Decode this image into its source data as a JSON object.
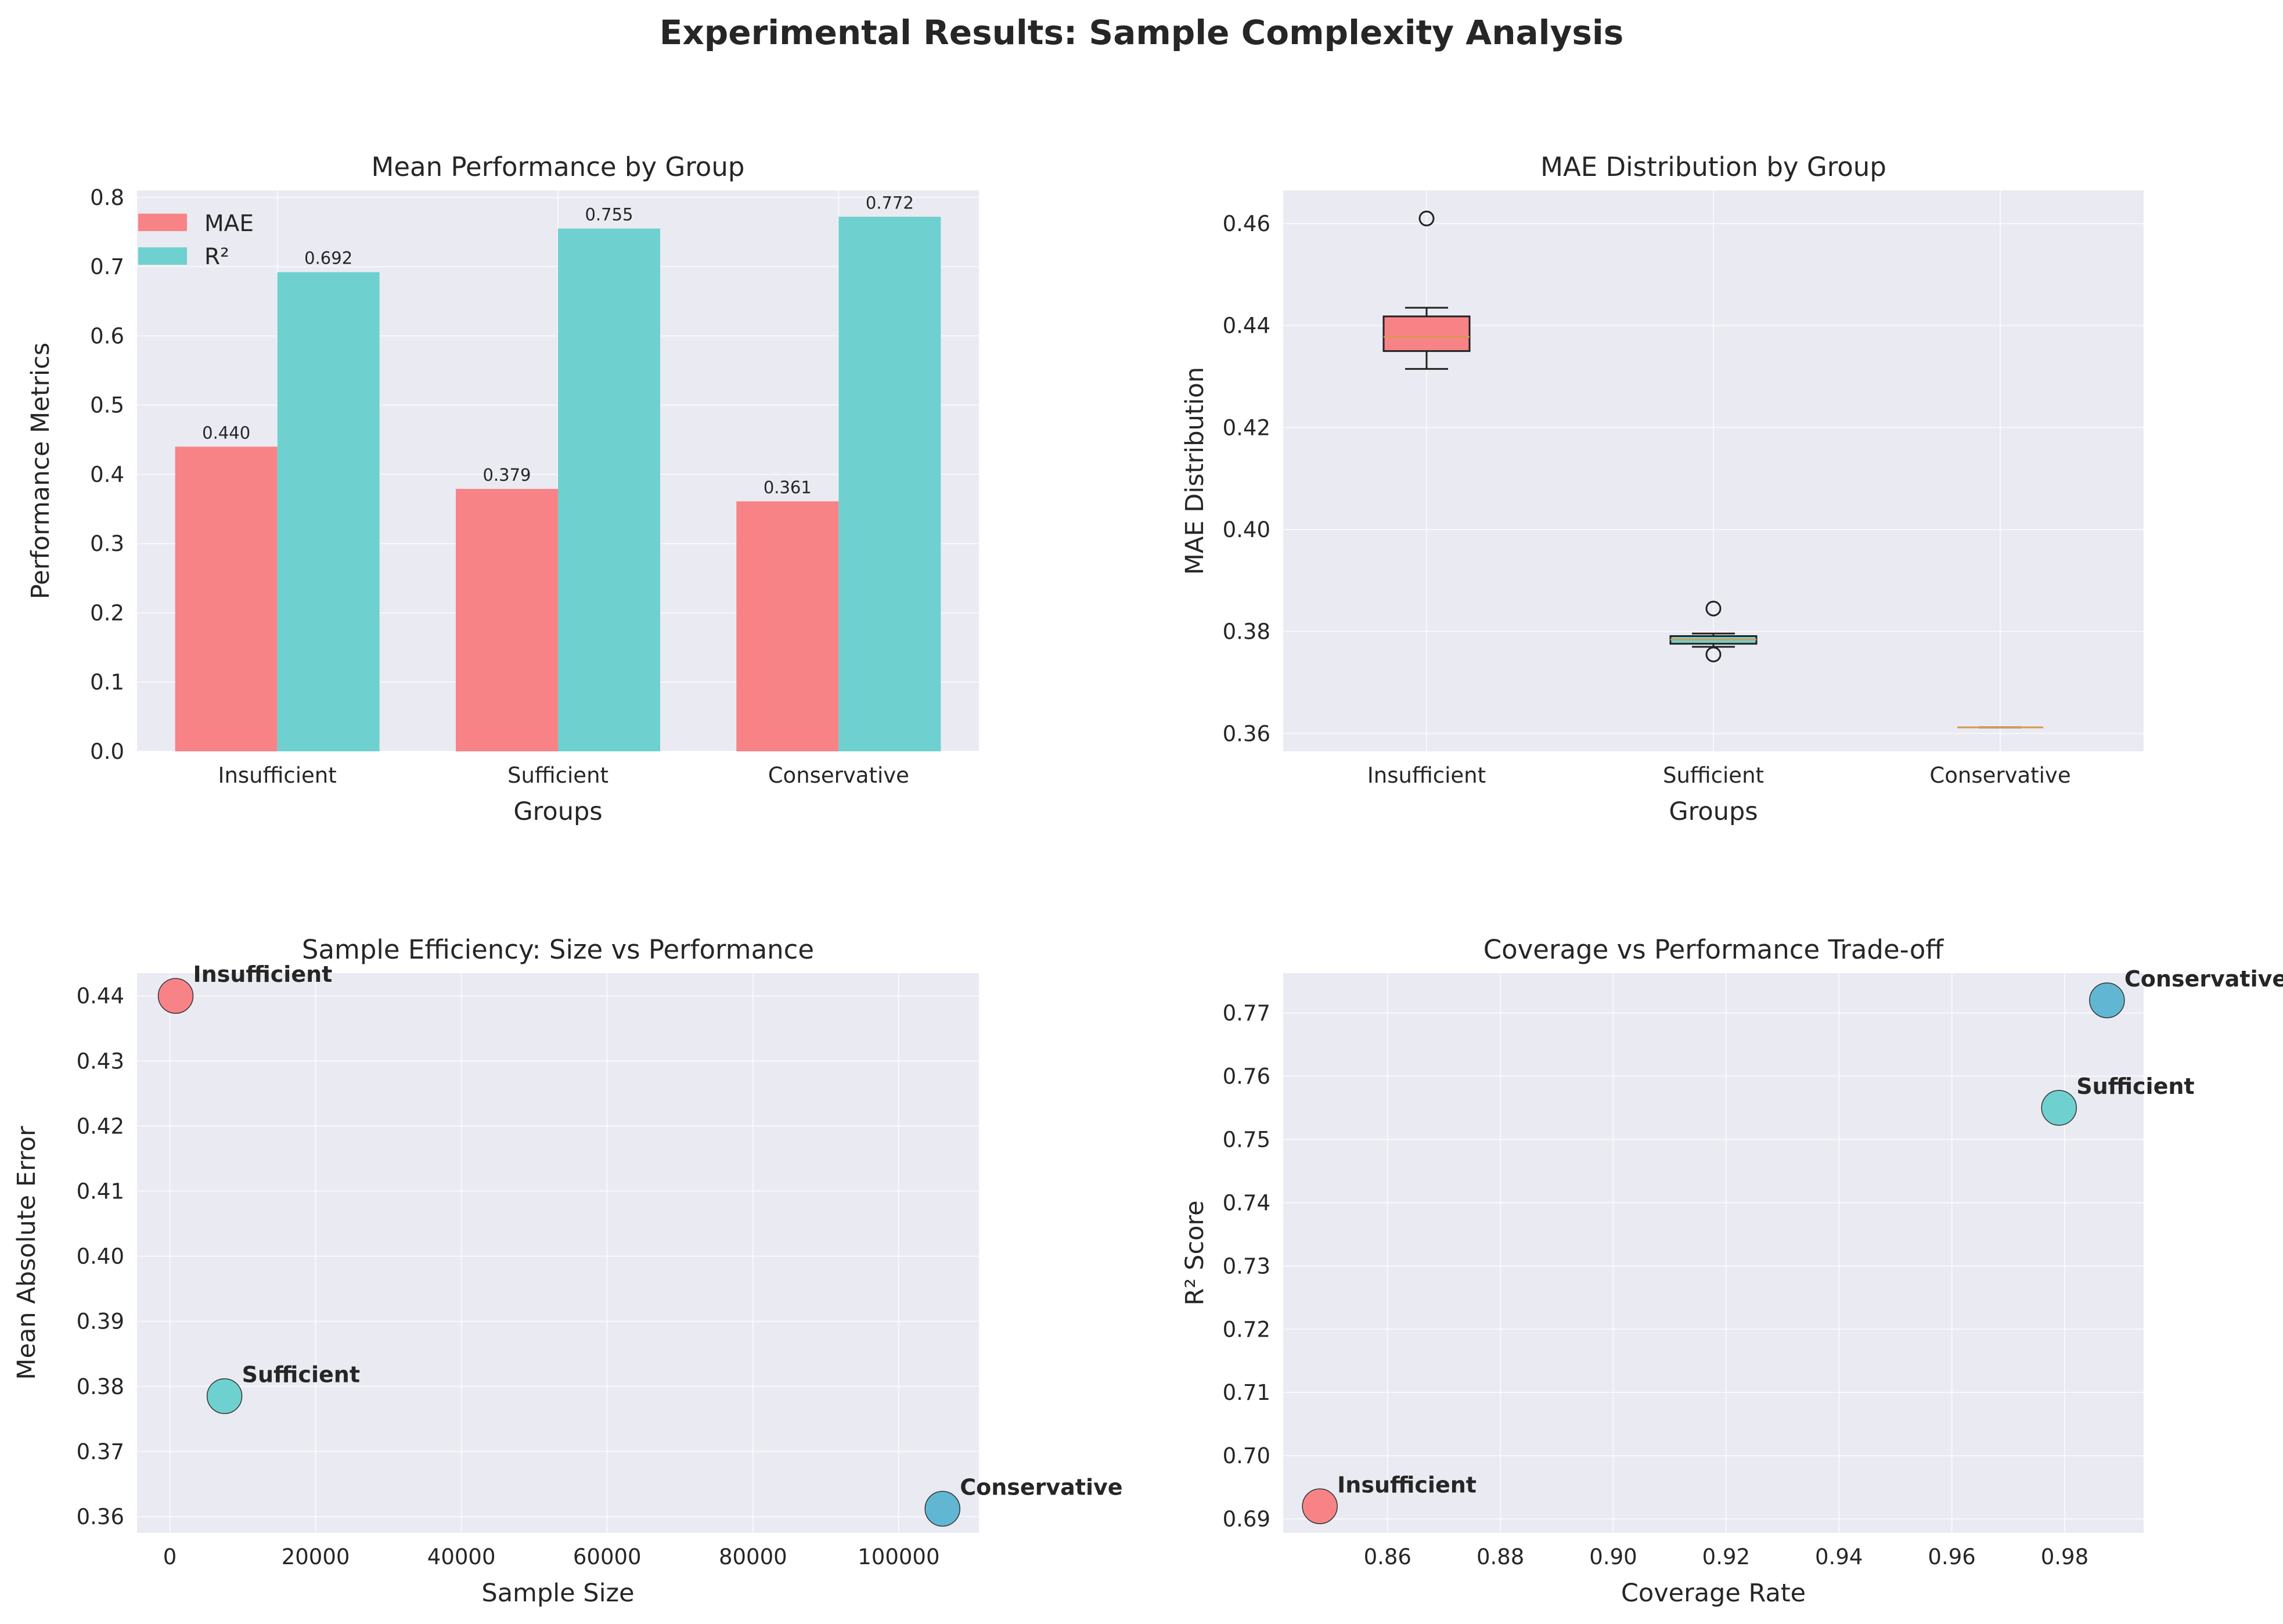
{
  "title": "Experimental Results: Sample Complexity Analysis",
  "colors": {
    "mae": "#f88387",
    "r2": "#6ed1cf",
    "insufficient": "#f88387",
    "sufficient": "#6ed1cf",
    "conservative": "#61b7d3",
    "median": "#d89b4b",
    "box_sufficient": "#6ed1cf"
  },
  "chart_data": [
    {
      "type": "bar",
      "title": "Mean Performance by Group",
      "xlabel": "Groups",
      "ylabel": "Performance Metrics",
      "categories": [
        "Insufficient",
        "Sufficient",
        "Conservative"
      ],
      "series": [
        {
          "name": "MAE",
          "values": [
            0.44,
            0.379,
            0.361
          ],
          "labels": [
            "0.440",
            "0.379",
            "0.361"
          ]
        },
        {
          "name": "R²",
          "values": [
            0.692,
            0.755,
            0.772
          ],
          "labels": [
            "0.692",
            "0.755",
            "0.772"
          ]
        }
      ],
      "ylim": [
        0,
        0.81
      ],
      "yticks": [
        0.0,
        0.1,
        0.2,
        0.3,
        0.4,
        0.5,
        0.6,
        0.7,
        0.8
      ],
      "ytick_labels": [
        "0.0",
        "0.1",
        "0.2",
        "0.3",
        "0.4",
        "0.5",
        "0.6",
        "0.7",
        "0.8"
      ],
      "legend": "top-left"
    },
    {
      "type": "box",
      "title": "MAE Distribution by Group",
      "xlabel": "Groups",
      "ylabel": "MAE Distribution",
      "categories": [
        "Insufficient",
        "Sufficient",
        "Conservative"
      ],
      "boxes": [
        {
          "whisker_low": 0.4315,
          "q1": 0.435,
          "median": 0.4378,
          "q3": 0.4418,
          "whisker_high": 0.4435,
          "outliers": [
            0.461
          ]
        },
        {
          "whisker_low": 0.377,
          "q1": 0.3776,
          "median": 0.3784,
          "q3": 0.3791,
          "whisker_high": 0.3796,
          "outliers": [
            0.3845,
            0.3755
          ]
        },
        {
          "whisker_low": 0.3612,
          "q1": 0.3612,
          "median": 0.3612,
          "q3": 0.3612,
          "whisker_high": 0.3612,
          "outliers": []
        }
      ],
      "ylim": [
        0.3565,
        0.4665
      ],
      "yticks": [
        0.36,
        0.38,
        0.4,
        0.42,
        0.44,
        0.46
      ],
      "ytick_labels": [
        "0.36",
        "0.38",
        "0.40",
        "0.42",
        "0.44",
        "0.46"
      ]
    },
    {
      "type": "scatter",
      "title": "Sample Efficiency: Size vs Performance",
      "xlabel": "Sample Size",
      "ylabel": "Mean Absolute Error",
      "points": [
        {
          "label": "Insufficient",
          "x": 800,
          "y": 0.44
        },
        {
          "label": "Sufficient",
          "x": 7500,
          "y": 0.3785
        },
        {
          "label": "Conservative",
          "x": 106000,
          "y": 0.3612
        }
      ],
      "xlim": [
        -4500,
        111000
      ],
      "ylim": [
        0.3575,
        0.4435
      ],
      "xticks": [
        0,
        20000,
        40000,
        60000,
        80000,
        100000
      ],
      "xtick_labels": [
        "0",
        "20000",
        "40000",
        "60000",
        "80000",
        "100000"
      ],
      "yticks": [
        0.36,
        0.37,
        0.38,
        0.39,
        0.4,
        0.41,
        0.42,
        0.43,
        0.44
      ],
      "ytick_labels": [
        "0.36",
        "0.37",
        "0.38",
        "0.39",
        "0.40",
        "0.41",
        "0.42",
        "0.43",
        "0.44"
      ]
    },
    {
      "type": "scatter",
      "title": "Coverage vs Performance Trade-off",
      "xlabel": "Coverage Rate",
      "ylabel": "R² Score",
      "points": [
        {
          "label": "Insufficient",
          "x": 0.848,
          "y": 0.692
        },
        {
          "label": "Sufficient",
          "x": 0.979,
          "y": 0.755
        },
        {
          "label": "Conservative",
          "x": 0.9875,
          "y": 0.772
        }
      ],
      "xlim": [
        0.8415,
        0.994
      ],
      "ylim": [
        0.6878,
        0.7763
      ],
      "xticks": [
        0.86,
        0.88,
        0.9,
        0.92,
        0.94,
        0.96,
        0.98
      ],
      "xtick_labels": [
        "0.86",
        "0.88",
        "0.90",
        "0.92",
        "0.94",
        "0.96",
        "0.98"
      ],
      "yticks": [
        0.69,
        0.7,
        0.71,
        0.72,
        0.73,
        0.74,
        0.75,
        0.76,
        0.77
      ],
      "ytick_labels": [
        "0.69",
        "0.70",
        "0.71",
        "0.72",
        "0.73",
        "0.74",
        "0.75",
        "0.76",
        "0.77"
      ]
    }
  ]
}
